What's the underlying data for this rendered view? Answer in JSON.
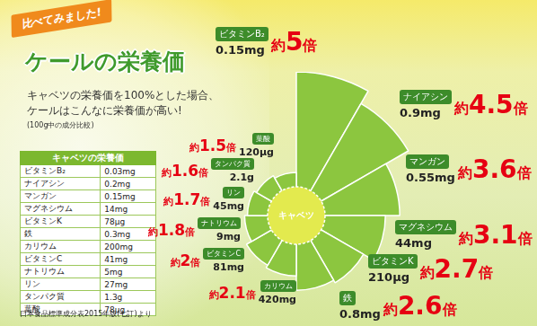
{
  "header": {
    "banner": "比べてみました!",
    "title": "ケールの栄養価",
    "subtitle": [
      "キャベツの栄養価を100%とした場合、",
      "ケールはこんなに栄養価が高い!"
    ],
    "note": "(100g中の成分比較)"
  },
  "table": {
    "title": "キャベツの栄養価",
    "rows": [
      [
        "ビタミンB₂",
        "0.03mg"
      ],
      [
        "ナイアシン",
        "0.2mg"
      ],
      [
        "マンガン",
        "0.15mg"
      ],
      [
        "マグネシウム",
        "14mg"
      ],
      [
        "ビタミンK",
        "78μg"
      ],
      [
        "鉄",
        "0.3mg"
      ],
      [
        "カリウム",
        "200mg"
      ],
      [
        "ビタミンC",
        "41mg"
      ],
      [
        "ナトリウム",
        "5mg"
      ],
      [
        "リン",
        "27mg"
      ],
      [
        "タンパク質",
        "1.3g"
      ],
      [
        "葉酸",
        "78μg"
      ]
    ]
  },
  "source": "日本食品標準成分表2015年版(七訂)より",
  "chart_data": {
    "type": "polarArea",
    "categories": [
      "ビタミンB₂",
      "ナイアシン",
      "マンガン",
      "マグネシウム",
      "ビタミンK",
      "鉄",
      "カリウム",
      "ビタミンC",
      "ナトリウム",
      "リン",
      "タンパク質",
      "葉酸"
    ],
    "amounts": [
      "0.15mg",
      "0.9mg",
      "0.55mg",
      "44mg",
      "210μg",
      "0.8mg",
      "420mg",
      "81mg",
      "9mg",
      "45mg",
      "2.1g",
      "120μg"
    ],
    "values": [
      5,
      4.5,
      3.6,
      3.1,
      2.7,
      2.6,
      2.1,
      2,
      1.8,
      1.7,
      1.6,
      1.5
    ],
    "value_labels": [
      "約5倍",
      "約4.5倍",
      "約3.6倍",
      "約3.1倍",
      "約2.7倍",
      "約2.6倍",
      "約2.1倍",
      "約2倍",
      "約1.8倍",
      "約1.7倍",
      "約1.6倍",
      "約1.5倍"
    ],
    "data_labels": true,
    "color": "#8cc63f",
    "baseline": {
      "label": "キャベツ",
      "value": 1
    },
    "ylim": [
      0,
      5
    ],
    "tick_labels": false,
    "grid": false
  }
}
